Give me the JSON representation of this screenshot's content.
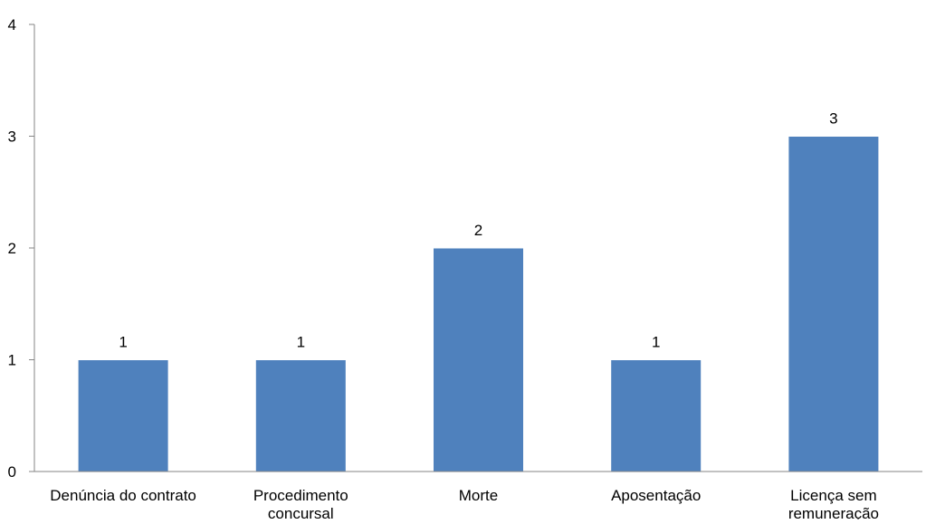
{
  "chart_data": {
    "type": "bar",
    "title": "",
    "xlabel": "",
    "ylabel": "",
    "categories": [
      [
        "Denúncia do contrato"
      ],
      [
        "Procedimento",
        "concursal"
      ],
      [
        "Morte"
      ],
      [
        "Aposentação"
      ],
      [
        "Licença sem",
        "remuneração"
      ]
    ],
    "values": [
      1,
      1,
      2,
      1,
      3
    ],
    "data_labels": [
      "1",
      "1",
      "2",
      "1",
      "3"
    ],
    "ylim": [
      0,
      4
    ],
    "yticks": [
      0,
      1,
      2,
      3,
      4
    ],
    "ytick_labels": [
      "0",
      "1",
      "2",
      "3",
      "4"
    ],
    "grid": false,
    "legend": "none",
    "bar_color": "#4f81bd",
    "axis_color": "#868686"
  }
}
